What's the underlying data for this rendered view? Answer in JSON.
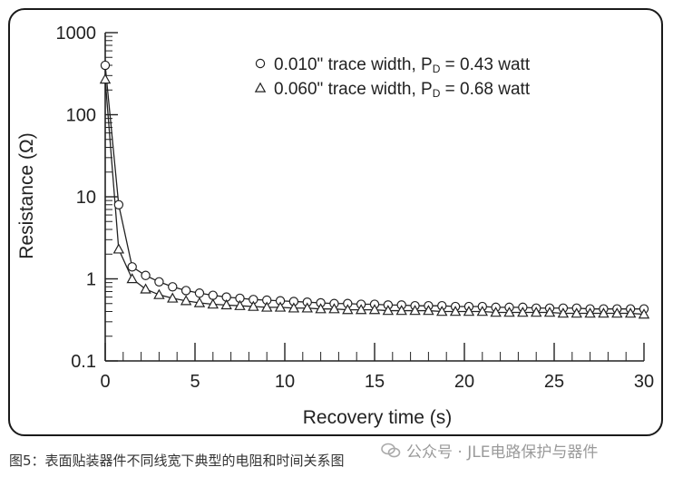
{
  "chart_data": {
    "type": "scatter",
    "xlabel": "Recovery time (s)",
    "ylabel": "Resistance (Ω)",
    "xlim": [
      0,
      30
    ],
    "ylim": [
      0.1,
      1000
    ],
    "yscale": "log",
    "xticks": [
      0,
      5,
      10,
      15,
      20,
      25,
      30
    ],
    "yticks": [
      0.1,
      1,
      10,
      100,
      1000
    ],
    "xtick_labels": [
      "0",
      "5",
      "10",
      "15",
      "20",
      "25",
      "30"
    ],
    "ytick_labels": [
      "0.1",
      "1",
      "10",
      "100",
      "1000"
    ],
    "legend_placement": "top-right",
    "grid": false,
    "series": [
      {
        "name": "0.010\" trace width, P",
        "name_sub": "D",
        "name_tail": " = 0.43 watt",
        "marker": "circle",
        "x": [
          0,
          0.75,
          1.5,
          2.25,
          3,
          3.75,
          4.5,
          5.25,
          6,
          6.75,
          7.5,
          8.25,
          9,
          9.75,
          10.5,
          11.25,
          12,
          12.75,
          13.5,
          14.25,
          15,
          15.75,
          16.5,
          17.25,
          18,
          18.75,
          19.5,
          20.25,
          21,
          21.75,
          22.5,
          23.25,
          24,
          24.75,
          25.5,
          26.25,
          27,
          27.75,
          28.5,
          29.25,
          30
        ],
        "y": [
          400,
          8,
          1.4,
          1.1,
          0.92,
          0.8,
          0.72,
          0.67,
          0.63,
          0.6,
          0.58,
          0.56,
          0.55,
          0.54,
          0.53,
          0.52,
          0.51,
          0.5,
          0.5,
          0.49,
          0.49,
          0.48,
          0.48,
          0.47,
          0.47,
          0.47,
          0.46,
          0.46,
          0.46,
          0.45,
          0.45,
          0.45,
          0.44,
          0.44,
          0.44,
          0.44,
          0.43,
          0.43,
          0.43,
          0.43,
          0.43
        ]
      },
      {
        "name": "0.060\" trace width, P",
        "name_sub": "D",
        "name_tail": " = 0.68 watt",
        "marker": "triangle",
        "x": [
          0,
          0.75,
          1.5,
          2.25,
          3,
          3.75,
          4.5,
          5.25,
          6,
          6.75,
          7.5,
          8.25,
          9,
          9.75,
          10.5,
          11.25,
          12,
          12.75,
          13.5,
          14.25,
          15,
          15.75,
          16.5,
          17.25,
          18,
          18.75,
          19.5,
          20.25,
          21,
          21.75,
          22.5,
          23.25,
          24,
          24.75,
          25.5,
          26.25,
          27,
          27.75,
          28.5,
          29.25,
          30
        ],
        "y": [
          270,
          2.3,
          1.0,
          0.75,
          0.64,
          0.58,
          0.54,
          0.51,
          0.49,
          0.48,
          0.47,
          0.46,
          0.45,
          0.45,
          0.44,
          0.44,
          0.43,
          0.43,
          0.42,
          0.42,
          0.42,
          0.41,
          0.41,
          0.41,
          0.41,
          0.4,
          0.4,
          0.4,
          0.4,
          0.39,
          0.39,
          0.39,
          0.39,
          0.39,
          0.38,
          0.38,
          0.38,
          0.38,
          0.38,
          0.38,
          0.37
        ]
      }
    ]
  },
  "caption": "图5：表面贴装器件不同线宽下典型的电阻和时间关系图",
  "watermark": "公众号 · JLE电路保护与器件"
}
